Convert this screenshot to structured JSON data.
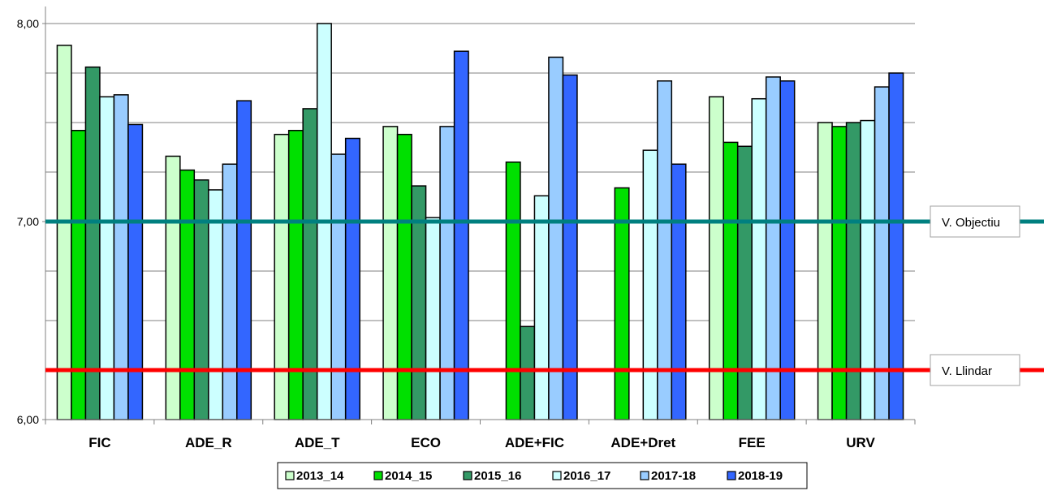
{
  "chart_data": {
    "type": "bar",
    "categories": [
      "FIC",
      "ADE_R",
      "ADE_T",
      "ECO",
      "ADE+FIC",
      "ADE+Dret",
      "FEE",
      "URV"
    ],
    "ylim": [
      6.0,
      8.0
    ],
    "yticks": [
      "6,00",
      "7,00",
      "8,00"
    ],
    "series": [
      {
        "name": "2013_14",
        "color": "#ccffcc",
        "values": [
          7.89,
          7.33,
          7.44,
          7.48,
          null,
          null,
          7.63,
          7.5
        ]
      },
      {
        "name": "2014_15",
        "color": "#00e000",
        "values": [
          7.46,
          7.26,
          7.46,
          7.44,
          7.3,
          7.17,
          7.4,
          7.48
        ]
      },
      {
        "name": "2015_16",
        "color": "#339966",
        "values": [
          7.78,
          7.21,
          7.57,
          7.18,
          6.47,
          null,
          7.38,
          7.5
        ]
      },
      {
        "name": "2016_17",
        "color": "#ccffff",
        "values": [
          7.63,
          7.16,
          8.0,
          7.02,
          7.13,
          7.36,
          7.62,
          7.51
        ]
      },
      {
        "name": "2017-18",
        "color": "#99ccff",
        "values": [
          7.64,
          7.29,
          7.34,
          7.48,
          7.83,
          7.71,
          7.73,
          7.68
        ]
      },
      {
        "name": "2018-19",
        "color": "#3366ff",
        "values": [
          7.49,
          7.61,
          7.42,
          7.86,
          7.74,
          7.29,
          7.71,
          7.75
        ]
      }
    ],
    "reference_lines": [
      {
        "label": "V. Objectiu",
        "value": 7.0,
        "color": "#008080"
      },
      {
        "label": "V. Llindar",
        "value": 6.25,
        "color": "#ff0000"
      }
    ],
    "grid": true,
    "legend_position": "bottom"
  }
}
